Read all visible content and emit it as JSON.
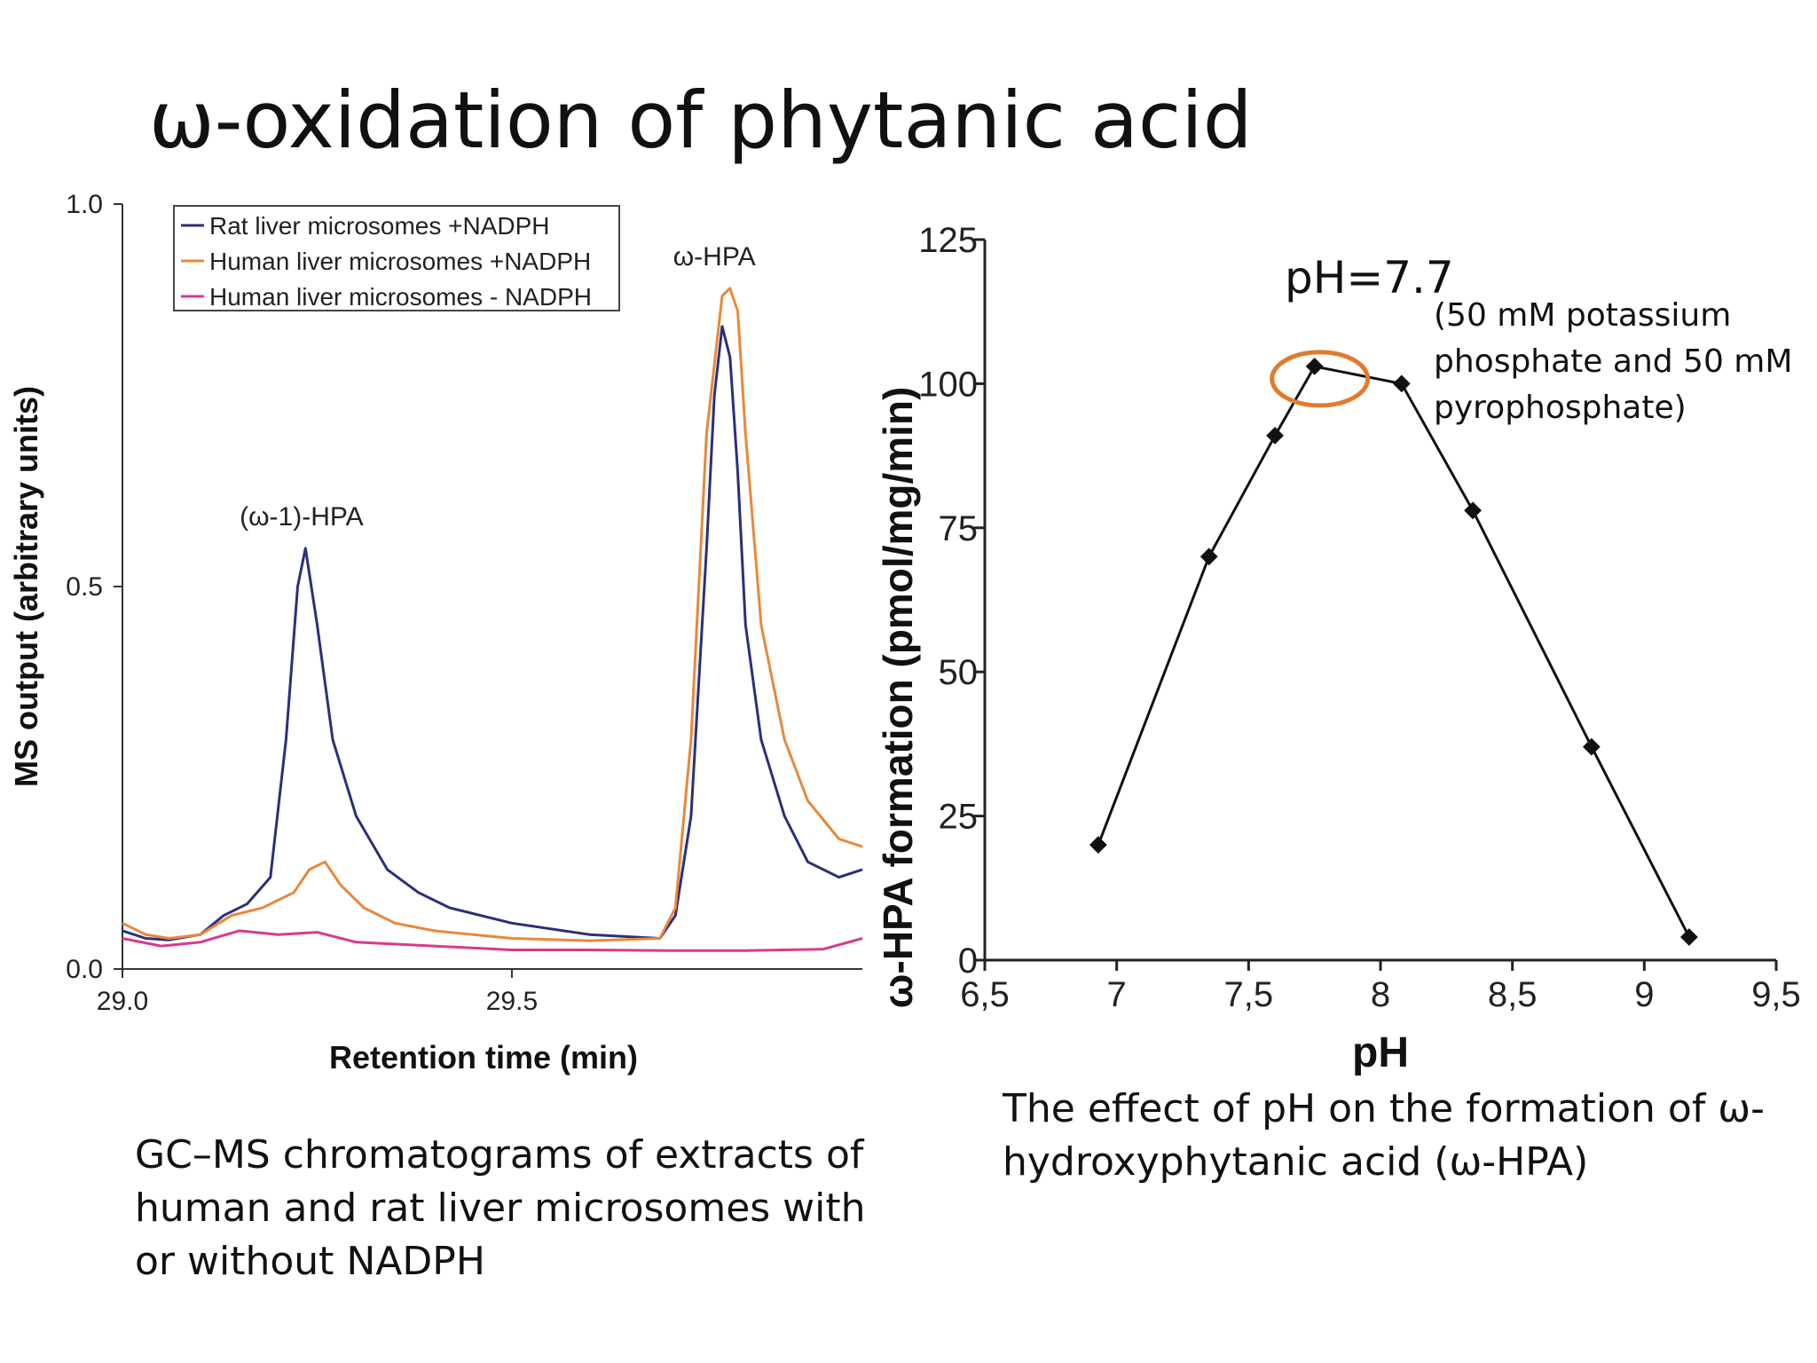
{
  "slide": {
    "title": "ω-oxidation of phytanic acid",
    "gc_caption": "GC–MS chromatograms of extracts of human and rat liver microsomes with or without NADPH",
    "ph_caption": "The effect of pH on the formation of ω-hydroxyphytanic acid (ω-HPA)",
    "ph_annotation_main": "pH=7.7",
    "ph_annotation_sub": "(50 mM potassium phosphate and 50 mM pyrophosphate)"
  },
  "chart_data": [
    {
      "type": "line",
      "xlabel": "Retention time (min)",
      "ylabel": "MS output (arbitrary units)",
      "xlim": [
        29.0,
        29.95
      ],
      "ylim": [
        0.0,
        1.0
      ],
      "x_ticks": [
        "29.0",
        "29.5"
      ],
      "y_ticks": [
        "0.0",
        "0.5",
        "1.0"
      ],
      "legend_position": "top-left",
      "annotations": [
        "(ω-1)-HPA",
        "ω-HPA"
      ],
      "series": [
        {
          "name": "Rat liver microsomes +NADPH",
          "color": "#2b2f7a",
          "x": [
            29.0,
            29.03,
            29.06,
            29.1,
            29.13,
            29.16,
            29.19,
            29.21,
            29.225,
            29.235,
            29.25,
            29.27,
            29.3,
            29.34,
            29.38,
            29.42,
            29.5,
            29.6,
            29.69,
            29.71,
            29.73,
            29.75,
            29.76,
            29.77,
            29.78,
            29.79,
            29.8,
            29.82,
            29.85,
            29.88,
            29.92,
            29.95
          ],
          "y": [
            0.05,
            0.04,
            0.038,
            0.045,
            0.07,
            0.085,
            0.12,
            0.3,
            0.5,
            0.55,
            0.45,
            0.3,
            0.2,
            0.13,
            0.1,
            0.08,
            0.06,
            0.045,
            0.04,
            0.07,
            0.2,
            0.55,
            0.75,
            0.84,
            0.8,
            0.65,
            0.45,
            0.3,
            0.2,
            0.14,
            0.12,
            0.13
          ]
        },
        {
          "name": "Human liver microsomes +NADPH",
          "color": "#e8883a",
          "x": [
            29.0,
            29.03,
            29.06,
            29.1,
            29.14,
            29.18,
            29.22,
            29.24,
            29.26,
            29.28,
            29.31,
            29.35,
            29.4,
            29.5,
            29.6,
            29.69,
            29.71,
            29.73,
            29.75,
            29.77,
            29.78,
            29.79,
            29.8,
            29.82,
            29.85,
            29.88,
            29.92,
            29.95
          ],
          "y": [
            0.06,
            0.045,
            0.04,
            0.045,
            0.07,
            0.08,
            0.1,
            0.13,
            0.14,
            0.11,
            0.08,
            0.06,
            0.05,
            0.04,
            0.037,
            0.04,
            0.08,
            0.3,
            0.7,
            0.88,
            0.89,
            0.86,
            0.7,
            0.45,
            0.3,
            0.22,
            0.17,
            0.16
          ]
        },
        {
          "name": "Human liver microsomes - NADPH",
          "color": "#d93a8c",
          "x": [
            29.0,
            29.05,
            29.1,
            29.15,
            29.2,
            29.25,
            29.3,
            29.4,
            29.5,
            29.6,
            29.7,
            29.8,
            29.9,
            29.95
          ],
          "y": [
            0.04,
            0.03,
            0.035,
            0.05,
            0.045,
            0.048,
            0.035,
            0.03,
            0.025,
            0.025,
            0.024,
            0.024,
            0.026,
            0.04
          ]
        }
      ]
    },
    {
      "type": "line",
      "xlabel": "pH",
      "ylabel": "ω-HPA formation (pmol/mg/min)",
      "xlim": [
        6.5,
        9.5
      ],
      "ylim": [
        0,
        125
      ],
      "x_ticks": [
        "6,5",
        "7",
        "7,5",
        "8",
        "8,5",
        "9",
        "9,5"
      ],
      "y_ticks": [
        "0",
        "25",
        "50",
        "75",
        "100",
        "125"
      ],
      "series": [
        {
          "x": [
            6.93,
            7.35,
            7.6,
            7.75,
            8.08,
            8.35,
            8.8,
            9.17
          ],
          "y": [
            20,
            70,
            91,
            103,
            100,
            78,
            37,
            4
          ]
        }
      ],
      "highlight": {
        "x": 7.75,
        "y": 103,
        "color": "#e07b2e"
      }
    }
  ]
}
